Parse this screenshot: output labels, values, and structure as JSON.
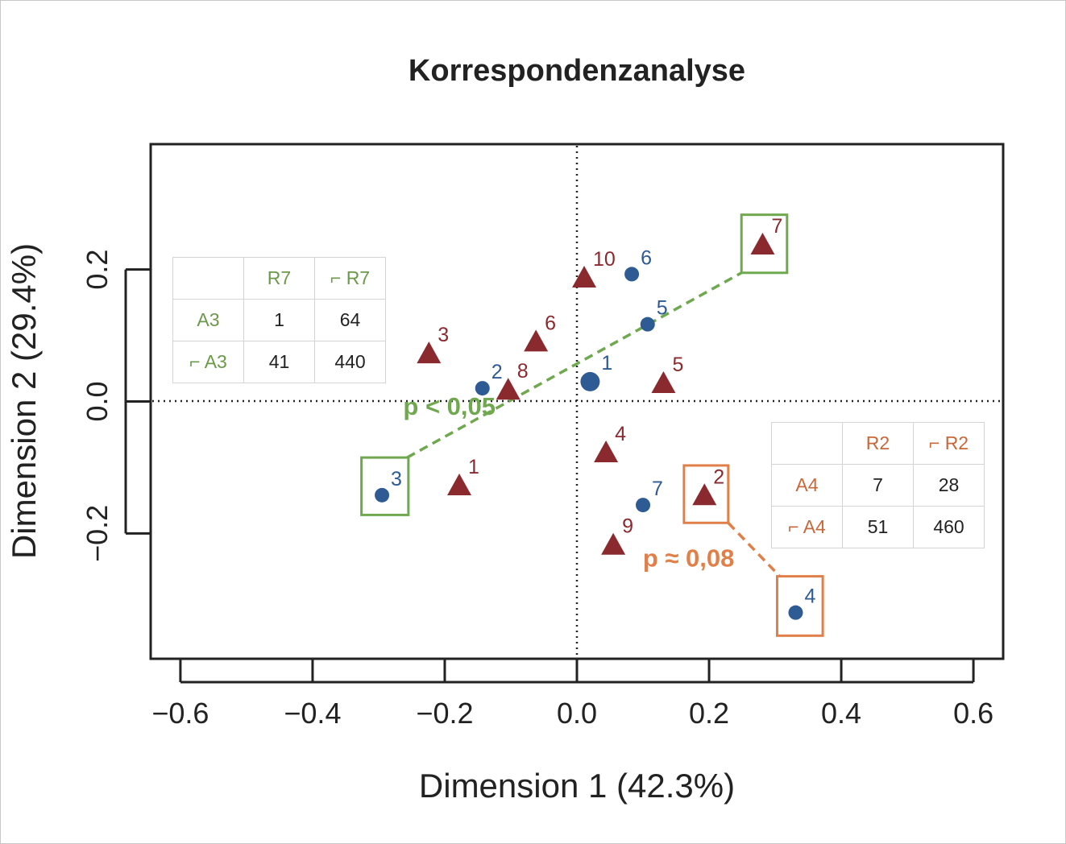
{
  "chart_data": {
    "type": "scatter",
    "title": "Korrespondenzanalyse",
    "xlabel": "Dimension 1 (42.3%)",
    "ylabel": "Dimension 2 (29.4%)",
    "xlim": [
      -0.645,
      0.645
    ],
    "ylim": [
      -0.39,
      0.39
    ],
    "x_ticks": [
      "−0.6",
      "−0.4",
      "−0.2",
      "0.0",
      "0.2",
      "0.4",
      "0.6"
    ],
    "x_tick_values": [
      -0.6,
      -0.4,
      -0.2,
      0.0,
      0.2,
      0.4,
      0.6
    ],
    "y_ticks": [
      "−0.2",
      "0.0",
      "0.2"
    ],
    "y_tick_values": [
      -0.2,
      0.0,
      0.2
    ],
    "reference_lines": {
      "x": 0,
      "y": 0,
      "style": "dotted"
    },
    "grid": false,
    "series": [
      {
        "marker": "circle",
        "color": "#2e5b93",
        "points": [
          {
            "label": "1",
            "x": 0.02,
            "y": 0.03,
            "large": true
          },
          {
            "label": "2",
            "x": -0.143,
            "y": 0.02
          },
          {
            "label": "3",
            "x": -0.295,
            "y": -0.142
          },
          {
            "label": "4",
            "x": 0.331,
            "y": -0.32
          },
          {
            "label": "5",
            "x": 0.107,
            "y": 0.117
          },
          {
            "label": "6",
            "x": 0.083,
            "y": 0.193
          },
          {
            "label": "7",
            "x": 0.1,
            "y": -0.157
          }
        ]
      },
      {
        "marker": "triangle",
        "color": "#8b2a2e",
        "points": [
          {
            "label": "1",
            "x": -0.178,
            "y": -0.13
          },
          {
            "label": "2",
            "x": 0.193,
            "y": -0.145
          },
          {
            "label": "3",
            "x": -0.224,
            "y": 0.07
          },
          {
            "label": "4",
            "x": 0.044,
            "y": -0.08
          },
          {
            "label": "5",
            "x": 0.131,
            "y": 0.025
          },
          {
            "label": "6",
            "x": -0.062,
            "y": 0.088
          },
          {
            "label": "7",
            "x": 0.281,
            "y": 0.235
          },
          {
            "label": "8",
            "x": -0.104,
            "y": 0.015
          },
          {
            "label": "9",
            "x": 0.055,
            "y": -0.22
          },
          {
            "label": "10",
            "x": 0.011,
            "y": 0.185
          }
        ]
      }
    ],
    "annotations": [
      {
        "text": "p < 0,05",
        "color": "#70a84f",
        "from": [
          -0.257,
          -0.085
        ],
        "to": [
          0.249,
          0.195
        ],
        "boxes": [
          [
            -0.326,
            -0.172,
            -0.255,
            -0.085
          ],
          [
            0.249,
            0.195,
            0.318,
            0.283
          ]
        ]
      },
      {
        "text": "p ≈ 0,08",
        "color": "#e07f48",
        "from": [
          0.229,
          -0.184
        ],
        "to": [
          0.307,
          -0.265
        ],
        "boxes": [
          [
            0.162,
            -0.184,
            0.229,
            -0.097
          ],
          [
            0.303,
            -0.355,
            0.372,
            -0.265
          ]
        ]
      }
    ]
  },
  "table_a3_r7": {
    "header": [
      "",
      "R7",
      "⌐ R7"
    ],
    "rows": [
      [
        "A3",
        "1",
        "64"
      ],
      [
        "⌐ A3",
        "41",
        "440"
      ]
    ]
  },
  "table_a4_r2": {
    "header": [
      "",
      "R2",
      "⌐ R2"
    ],
    "rows": [
      [
        "A4",
        "7",
        "28"
      ],
      [
        "⌐ A4",
        "51",
        "460"
      ]
    ]
  }
}
